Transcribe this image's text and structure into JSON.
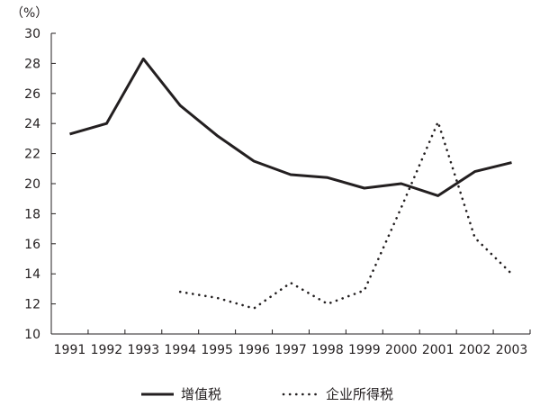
{
  "chart_data": {
    "type": "line",
    "ylabel": "（%）",
    "categories": [
      "1991",
      "1992",
      "1993",
      "1994",
      "1995",
      "1996",
      "1997",
      "1998",
      "1999",
      "2000",
      "2001",
      "2002",
      "2003"
    ],
    "ylim": [
      10,
      30
    ],
    "yticks": [
      10,
      12,
      14,
      16,
      18,
      20,
      22,
      24,
      26,
      28,
      30
    ],
    "grid": false,
    "legend_position": "bottom",
    "series": [
      {
        "name": "增值税",
        "style": "solid",
        "color": "#231f20",
        "values": [
          23.3,
          24.0,
          28.3,
          25.2,
          23.2,
          21.5,
          20.6,
          20.4,
          19.7,
          20.0,
          19.2,
          20.8,
          21.4
        ]
      },
      {
        "name": "企业所得税",
        "style": "dotted",
        "color": "#231f20",
        "values": [
          null,
          null,
          null,
          12.8,
          12.4,
          11.7,
          13.4,
          12.0,
          12.9,
          18.4,
          24.1,
          16.4,
          14.0
        ]
      }
    ]
  }
}
